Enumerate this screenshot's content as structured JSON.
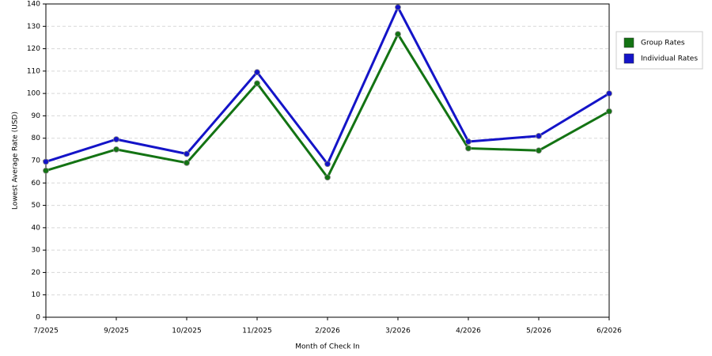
{
  "chart_data": {
    "type": "line",
    "x_label": "Month of Check In",
    "y_label": "Lowest Average Rate (USD)",
    "categories": [
      "7/2025",
      "9/2025",
      "10/2025",
      "11/2025",
      "2/2026",
      "3/2026",
      "4/2026",
      "5/2026",
      "6/2026"
    ],
    "series": [
      {
        "name": "Group Rates",
        "color": "#137313",
        "values": [
          65.5,
          75,
          69,
          104.5,
          62.5,
          126.5,
          75.5,
          74.5,
          92
        ]
      },
      {
        "name": "Individual Rates",
        "color": "#1414c8",
        "values": [
          69.5,
          79.5,
          73,
          109.5,
          68.5,
          138.5,
          78.5,
          81,
          100
        ]
      }
    ],
    "ylim": [
      0,
      140
    ],
    "yticks": [
      0,
      10,
      20,
      30,
      40,
      50,
      60,
      70,
      80,
      90,
      100,
      110,
      120,
      130,
      140
    ],
    "grid": true,
    "legend": "right"
  }
}
